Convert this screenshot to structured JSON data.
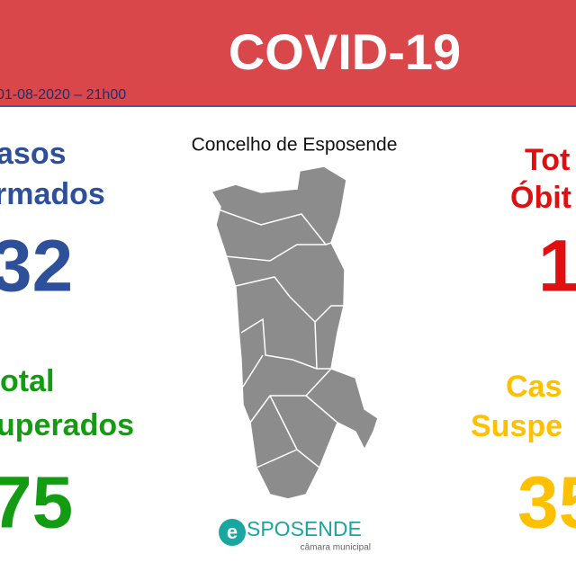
{
  "header": {
    "title": "COVID-19",
    "date": "01-08-2020 – 21h00"
  },
  "map": {
    "title": "Concelho de Esposende"
  },
  "stats": [
    {
      "label_lines": [
        "asos",
        "rmados"
      ],
      "value": "32"
    },
    {
      "label_lines": [
        "otal",
        "uperados"
      ],
      "value": "75"
    },
    {
      "label_lines": [
        "Tot",
        "Óbit"
      ],
      "value": "1"
    },
    {
      "label_lines": [
        "Cas",
        "Suspe"
      ],
      "value": "35"
    }
  ],
  "logo": {
    "name": "SPOSENDE",
    "subtitle": "câmara municipal"
  }
}
